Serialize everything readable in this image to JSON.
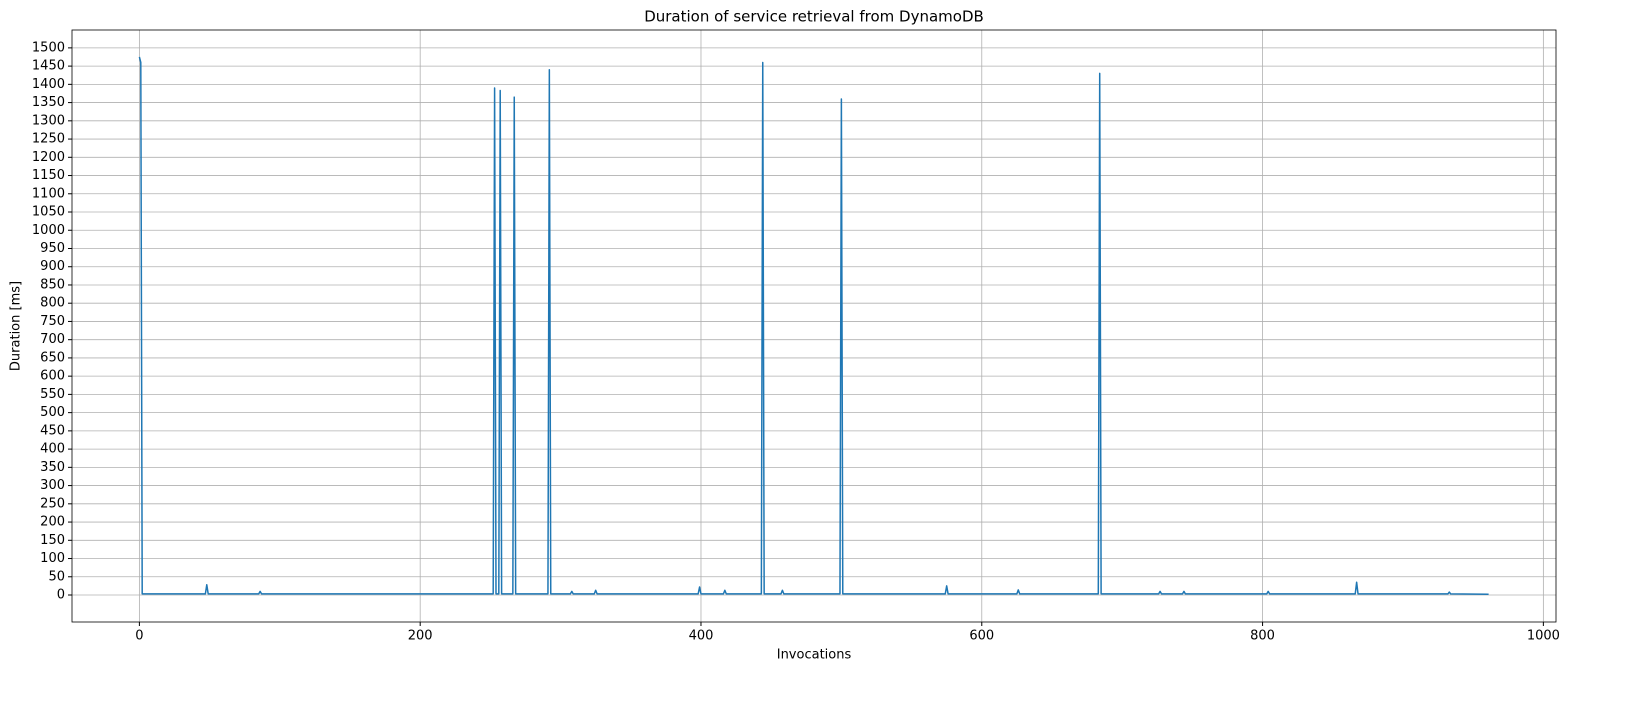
{
  "chart_data": {
    "type": "line",
    "title": "Duration of service retrieval from DynamoDB",
    "x_label": "Invocations",
    "y_label": "Duration [ms]",
    "x": [
      0,
      1,
      2,
      47,
      48,
      49,
      85,
      86,
      87,
      252,
      253,
      254,
      256,
      257,
      258,
      266,
      267,
      268,
      291,
      292,
      293,
      307,
      308,
      309,
      324,
      325,
      326,
      398,
      399,
      400,
      416,
      417,
      418,
      443,
      444,
      445,
      457,
      458,
      459,
      499,
      500,
      501,
      574,
      575,
      576,
      625,
      626,
      627,
      683,
      684,
      685,
      726,
      727,
      728,
      743,
      744,
      745,
      803,
      804,
      805,
      866,
      867,
      868,
      932,
      933,
      934,
      961
    ],
    "values": [
      1475,
      1460,
      3,
      3,
      28,
      3,
      3,
      10,
      3,
      3,
      1390,
      3,
      3,
      1383,
      3,
      3,
      1365,
      3,
      3,
      1440,
      3,
      3,
      10,
      3,
      3,
      13,
      3,
      3,
      22,
      3,
      3,
      13,
      3,
      3,
      1460,
      3,
      3,
      13,
      3,
      3,
      1360,
      3,
      3,
      25,
      3,
      3,
      14,
      3,
      3,
      1430,
      3,
      3,
      10,
      3,
      3,
      10,
      3,
      3,
      10,
      3,
      3,
      35,
      3,
      3,
      8,
      3,
      2
    ],
    "color": "#1f77b4",
    "xlim": [
      -48,
      1009
    ],
    "xticks": [
      0,
      200,
      400,
      600,
      800,
      1000
    ],
    "ylim": [
      -74,
      1549
    ],
    "yticks": [
      0,
      50,
      100,
      150,
      200,
      250,
      300,
      350,
      400,
      450,
      500,
      550,
      600,
      650,
      700,
      750,
      800,
      850,
      900,
      950,
      1000,
      1050,
      1100,
      1150,
      1200,
      1250,
      1300,
      1350,
      1400,
      1450,
      1500
    ],
    "grid": true
  }
}
